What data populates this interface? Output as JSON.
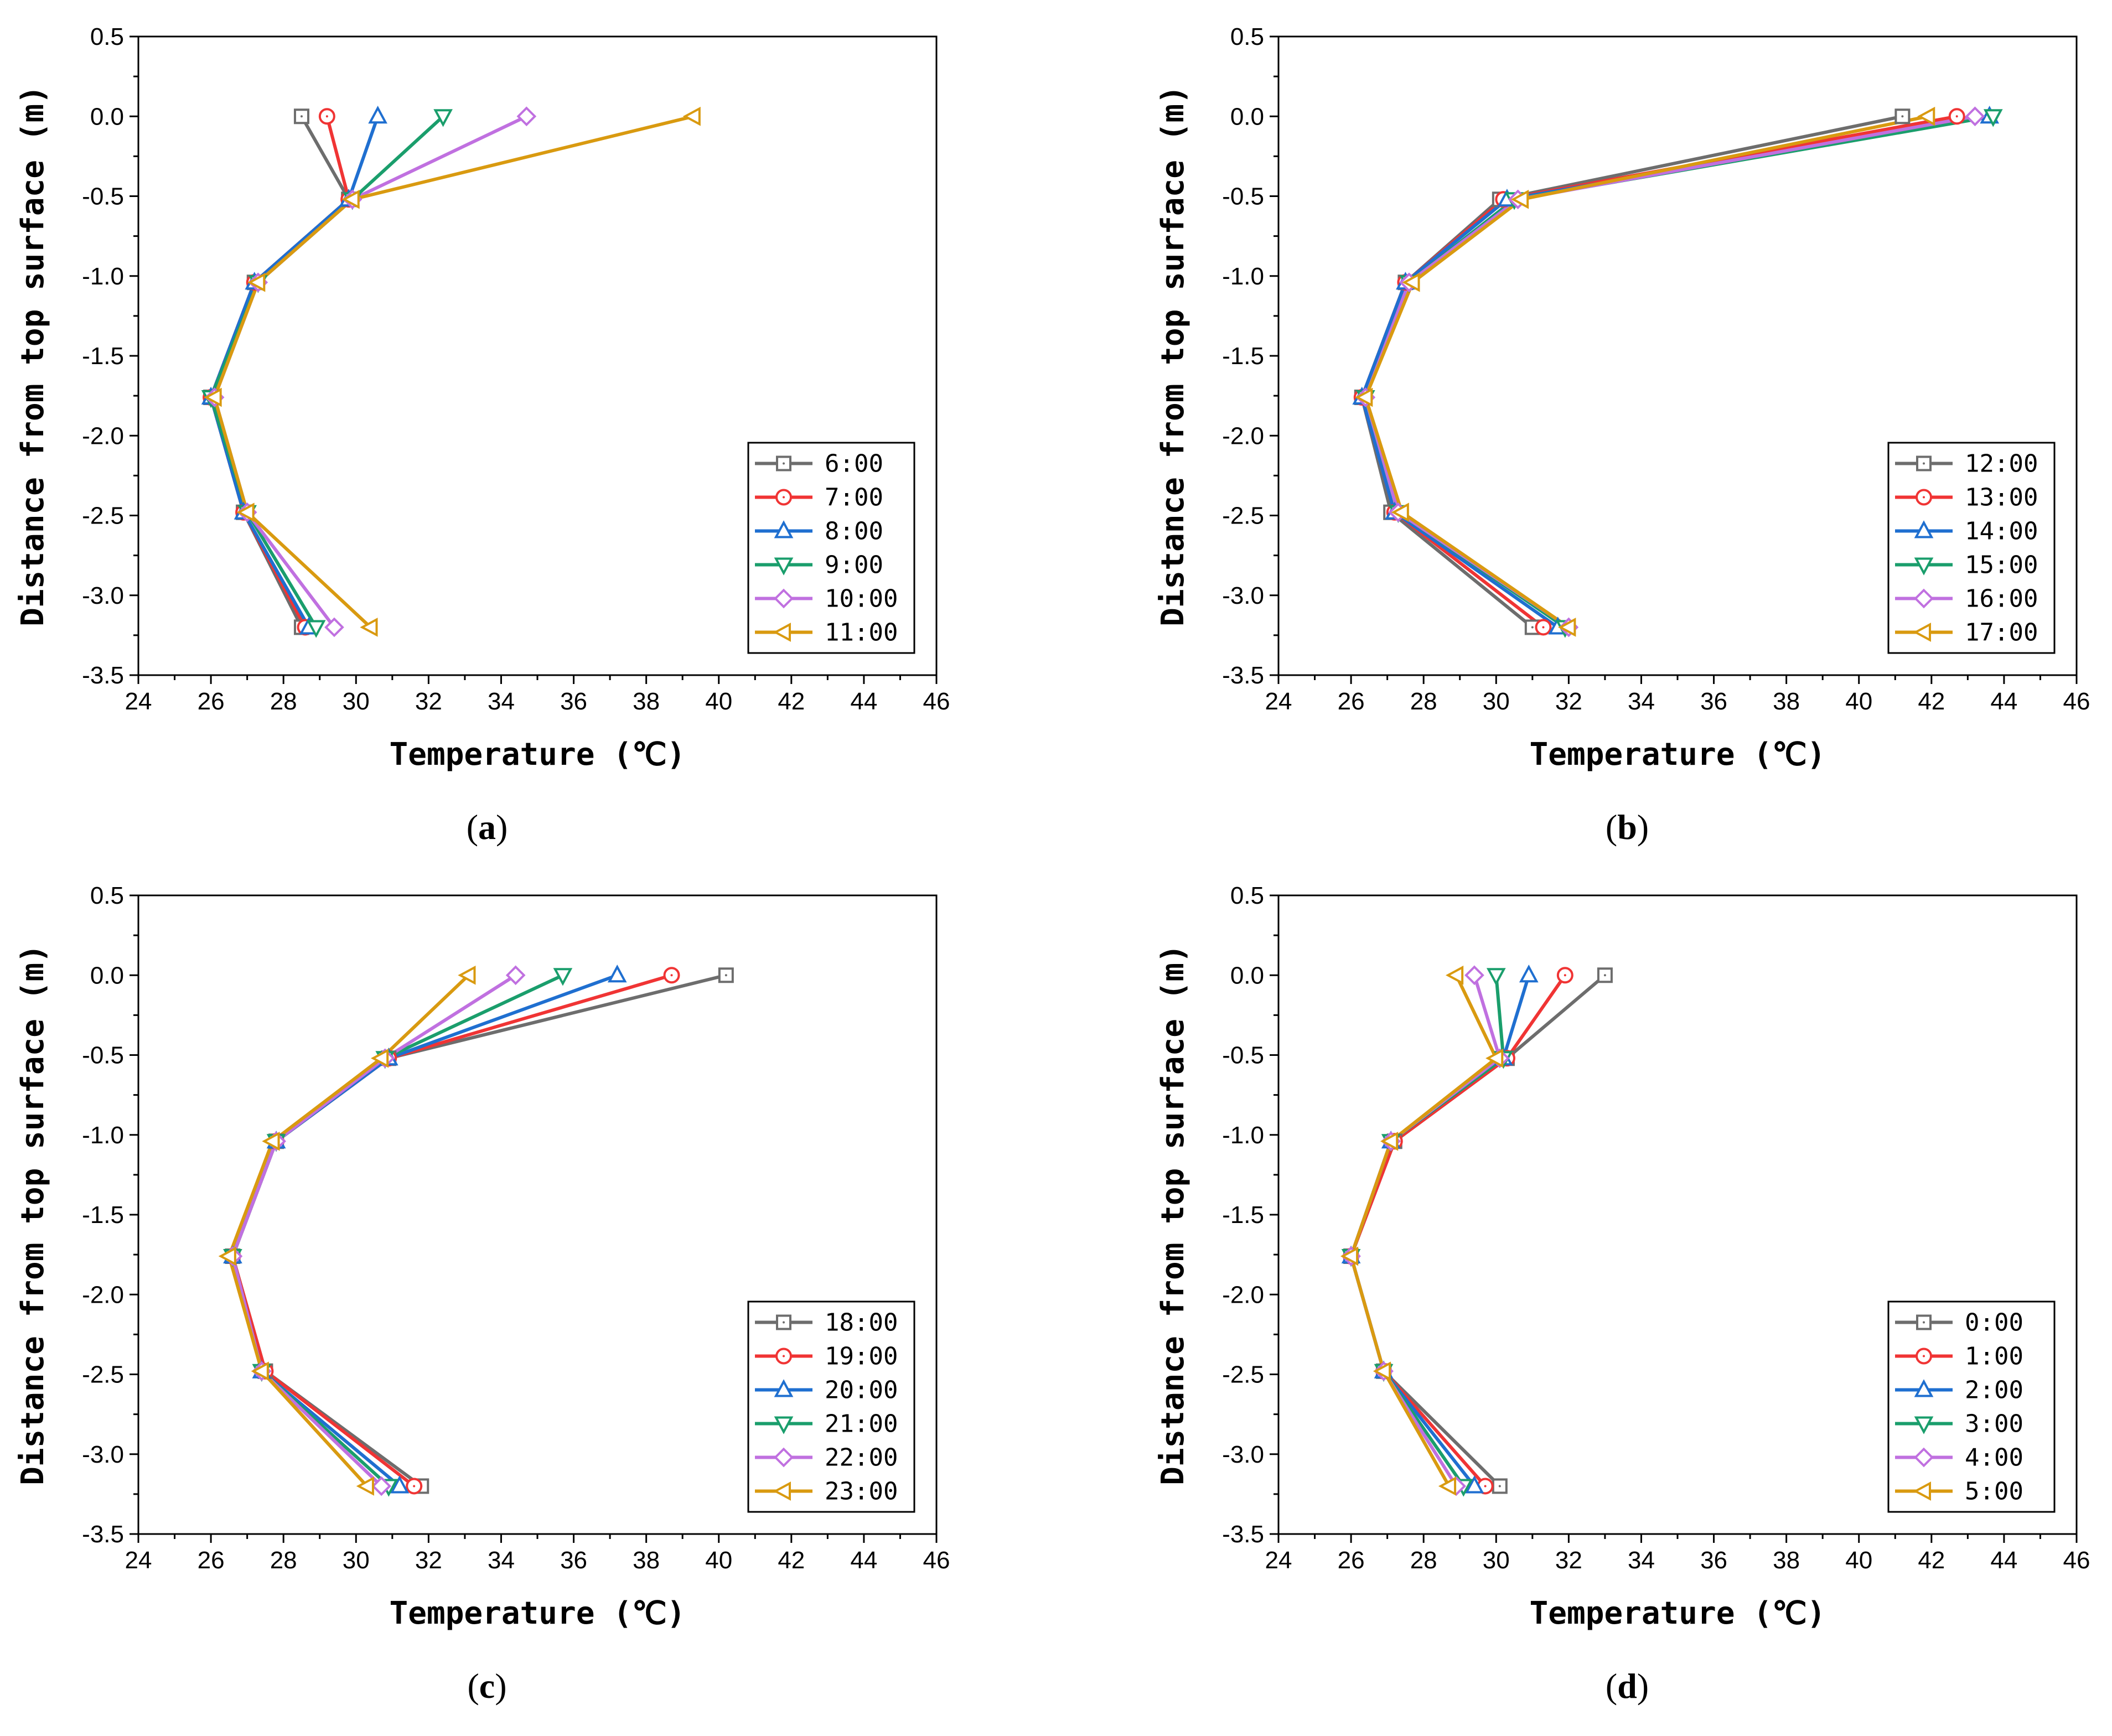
{
  "figure": {
    "panels": [
      {
        "id": "a",
        "caption_letter": "a"
      },
      {
        "id": "b",
        "caption_letter": "b"
      },
      {
        "id": "c",
        "caption_letter": "c"
      },
      {
        "id": "d",
        "caption_letter": "d"
      }
    ]
  },
  "colors": {
    "gray": "#6d6d6d",
    "red": "#f03434",
    "blue": "#1f6fd0",
    "green": "#1a9e6c",
    "purple": "#c070e0",
    "orange": "#d99a10"
  },
  "chart_data": [
    {
      "panel": "a",
      "type": "line",
      "xlabel": "Temperature (℃)",
      "ylabel": "Distance from top surface (m)",
      "xlim": [
        24,
        46
      ],
      "ylim": [
        -3.5,
        0.5
      ],
      "xticks": [
        "24",
        "26",
        "28",
        "30",
        "32",
        "34",
        "36",
        "38",
        "40",
        "42",
        "44",
        "46"
      ],
      "yticks": [
        "0.5",
        "0.0",
        "-0.5",
        "-1.0",
        "-1.5",
        "-2.0",
        "-2.5",
        "-3.0",
        "-3.5"
      ],
      "y": [
        0.0,
        -0.52,
        -1.04,
        -1.76,
        -2.48,
        -3.2
      ],
      "legend_position": "lower-right",
      "series": [
        {
          "name": "6:00",
          "color": "#6d6d6d",
          "marker": "square",
          "x": [
            28.5,
            29.8,
            27.2,
            26.0,
            26.9,
            28.5
          ]
        },
        {
          "name": "7:00",
          "color": "#f03434",
          "marker": "circle",
          "x": [
            29.2,
            29.8,
            27.2,
            26.0,
            26.9,
            28.6
          ]
        },
        {
          "name": "8:00",
          "color": "#1f6fd0",
          "marker": "triangle-up",
          "x": [
            30.6,
            29.8,
            27.2,
            26.0,
            26.9,
            28.7
          ]
        },
        {
          "name": "9:00",
          "color": "#1a9e6c",
          "marker": "triangle-down",
          "x": [
            32.4,
            29.9,
            27.3,
            26.0,
            27.0,
            28.9
          ]
        },
        {
          "name": "10:00",
          "color": "#c070e0",
          "marker": "diamond",
          "x": [
            34.7,
            29.9,
            27.3,
            26.1,
            27.0,
            29.4
          ]
        },
        {
          "name": "11:00",
          "color": "#d99a10",
          "marker": "triangle-left",
          "x": [
            39.3,
            29.9,
            27.3,
            26.1,
            27.0,
            30.4
          ]
        }
      ]
    },
    {
      "panel": "b",
      "type": "line",
      "xlabel": "Temperature (℃)",
      "ylabel": "Distance from top surface (m)",
      "xlim": [
        24,
        46
      ],
      "ylim": [
        -3.5,
        0.5
      ],
      "xticks": [
        "24",
        "26",
        "28",
        "30",
        "32",
        "34",
        "36",
        "38",
        "40",
        "42",
        "44",
        "46"
      ],
      "yticks": [
        "0.5",
        "0.0",
        "-0.5",
        "-1.0",
        "-1.5",
        "-2.0",
        "-2.5",
        "-3.0",
        "-3.5"
      ],
      "y": [
        0.0,
        -0.52,
        -1.04,
        -1.76,
        -2.48,
        -3.2
      ],
      "legend_position": "lower-right",
      "series": [
        {
          "name": "12:00",
          "color": "#6d6d6d",
          "marker": "square",
          "x": [
            41.2,
            30.1,
            27.5,
            26.3,
            27.1,
            31.0
          ]
        },
        {
          "name": "13:00",
          "color": "#f03434",
          "marker": "circle",
          "x": [
            42.7,
            30.2,
            27.5,
            26.3,
            27.2,
            31.3
          ]
        },
        {
          "name": "14:00",
          "color": "#1f6fd0",
          "marker": "triangle-up",
          "x": [
            43.6,
            30.3,
            27.5,
            26.3,
            27.2,
            31.7
          ]
        },
        {
          "name": "15:00",
          "color": "#1a9e6c",
          "marker": "triangle-down",
          "x": [
            43.7,
            30.5,
            27.6,
            26.4,
            27.3,
            31.9
          ]
        },
        {
          "name": "16:00",
          "color": "#c070e0",
          "marker": "diamond",
          "x": [
            43.2,
            30.6,
            27.6,
            26.4,
            27.3,
            32.0
          ]
        },
        {
          "name": "17:00",
          "color": "#d99a10",
          "marker": "triangle-left",
          "x": [
            41.9,
            30.7,
            27.7,
            26.4,
            27.4,
            32.0
          ]
        }
      ]
    },
    {
      "panel": "c",
      "type": "line",
      "xlabel": "Temperature (℃)",
      "ylabel": "Distance from top surface (m)",
      "xlim": [
        24,
        46
      ],
      "ylim": [
        -3.5,
        0.5
      ],
      "xticks": [
        "24",
        "26",
        "28",
        "30",
        "32",
        "34",
        "36",
        "38",
        "40",
        "42",
        "44",
        "46"
      ],
      "yticks": [
        "0.5",
        "0.0",
        "-0.5",
        "-1.0",
        "-1.5",
        "-2.0",
        "-2.5",
        "-3.0",
        "-3.5"
      ],
      "y": [
        0.0,
        -0.52,
        -1.04,
        -1.76,
        -2.48,
        -3.2
      ],
      "legend_position": "lower-right",
      "series": [
        {
          "name": "18:00",
          "color": "#6d6d6d",
          "marker": "square",
          "x": [
            40.2,
            30.9,
            27.8,
            26.6,
            27.5,
            31.8
          ]
        },
        {
          "name": "19:00",
          "color": "#f03434",
          "marker": "circle",
          "x": [
            38.7,
            30.9,
            27.8,
            26.6,
            27.5,
            31.6
          ]
        },
        {
          "name": "20:00",
          "color": "#1f6fd0",
          "marker": "triangle-up",
          "x": [
            37.2,
            30.9,
            27.8,
            26.6,
            27.4,
            31.2
          ]
        },
        {
          "name": "21:00",
          "color": "#1a9e6c",
          "marker": "triangle-down",
          "x": [
            35.7,
            30.8,
            27.8,
            26.6,
            27.4,
            30.9
          ]
        },
        {
          "name": "22:00",
          "color": "#c070e0",
          "marker": "diamond",
          "x": [
            34.4,
            30.8,
            27.8,
            26.6,
            27.4,
            30.7
          ]
        },
        {
          "name": "23:00",
          "color": "#d99a10",
          "marker": "triangle-left",
          "x": [
            33.1,
            30.7,
            27.7,
            26.5,
            27.4,
            30.3
          ]
        }
      ]
    },
    {
      "panel": "d",
      "type": "line",
      "xlabel": "Temperature (℃)",
      "ylabel": "Distance from top surface (m)",
      "xlim": [
        24,
        46
      ],
      "ylim": [
        -3.5,
        0.5
      ],
      "xticks": [
        "24",
        "26",
        "28",
        "30",
        "32",
        "34",
        "36",
        "38",
        "40",
        "42",
        "44",
        "46"
      ],
      "yticks": [
        "0.5",
        "0.0",
        "-0.5",
        "-1.0",
        "-1.5",
        "-2.0",
        "-2.5",
        "-3.0",
        "-3.5"
      ],
      "y": [
        0.0,
        -0.52,
        -1.04,
        -1.76,
        -2.48,
        -3.2
      ],
      "legend_position": "lower-right",
      "series": [
        {
          "name": "0:00",
          "color": "#6d6d6d",
          "marker": "square",
          "x": [
            33.0,
            30.3,
            27.2,
            26.0,
            26.9,
            30.1
          ]
        },
        {
          "name": "1:00",
          "color": "#f03434",
          "marker": "circle",
          "x": [
            31.9,
            30.3,
            27.2,
            26.0,
            26.9,
            29.7
          ]
        },
        {
          "name": "2:00",
          "color": "#1f6fd0",
          "marker": "triangle-up",
          "x": [
            30.9,
            30.2,
            27.1,
            26.0,
            26.9,
            29.4
          ]
        },
        {
          "name": "3:00",
          "color": "#1a9e6c",
          "marker": "triangle-down",
          "x": [
            30.0,
            30.2,
            27.1,
            26.0,
            26.9,
            29.1
          ]
        },
        {
          "name": "4:00",
          "color": "#c070e0",
          "marker": "diamond",
          "x": [
            29.4,
            30.1,
            27.1,
            26.0,
            26.9,
            28.9
          ]
        },
        {
          "name": "5:00",
          "color": "#d99a10",
          "marker": "triangle-left",
          "x": [
            28.9,
            30.0,
            27.1,
            26.0,
            26.9,
            28.7
          ]
        }
      ]
    }
  ]
}
